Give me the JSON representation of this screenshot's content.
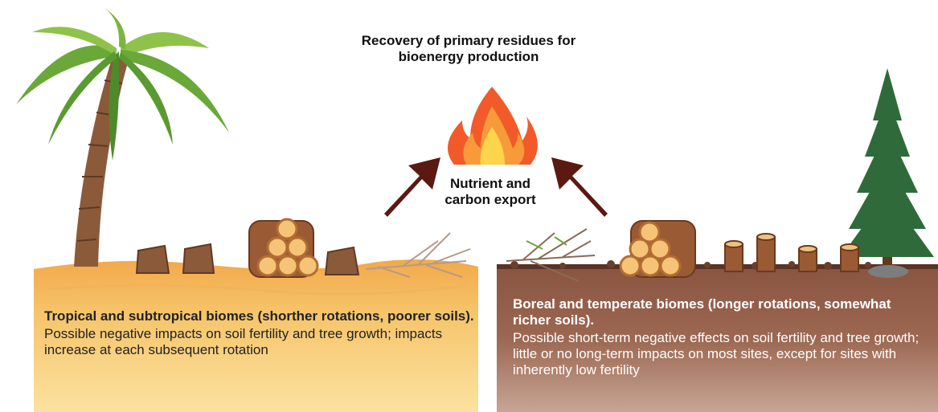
{
  "title": "Recovery of primary residues for bioenergy production",
  "export_label": "Nutrient and carbon export",
  "left_panel": {
    "heading": "Tropical and subtropical biomes (shorther rotations, poorer soils).",
    "body": "Possible negative impacts on soil fertility and tree growth; impacts increase at each subsequent rotation"
  },
  "right_panel": {
    "heading": "Boreal and temperate biomes (longer rotations, somewhat richer soils).",
    "body": "Possible short-term negative effects on soil fertility and tree growth; little or no long-term impacts on most sites, except for sites with inherently low fertility"
  }
}
